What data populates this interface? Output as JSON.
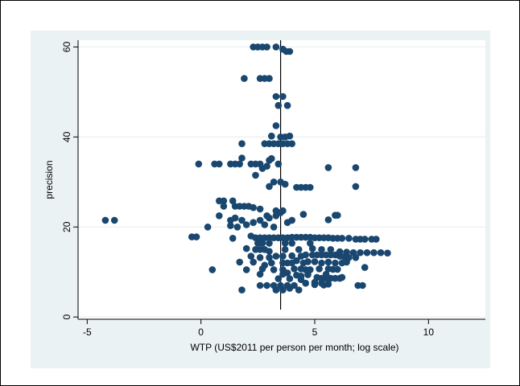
{
  "colors": {
    "frame_bg": "#ffffff",
    "region_bg": "#eaf2f3",
    "plot_bg": "#ffffff",
    "gridline": "#eaf2f3",
    "marker": "#1a476f",
    "axis": "#000000"
  },
  "chart_data": {
    "type": "scatter",
    "title": "",
    "xlabel": "WTP (US$2011 per person per month; log scale)",
    "ylabel": "precision",
    "xlim": [
      -5.4,
      12.5
    ],
    "ylim": [
      -0.5,
      61.5
    ],
    "xticks": [
      -5,
      0,
      5,
      10
    ],
    "yticks": [
      0,
      20,
      40,
      60
    ],
    "grid": "horizontal",
    "reference_line": {
      "x": 3.5
    },
    "series": [
      {
        "points": [
          [
            2.3,
            60
          ],
          [
            2.5,
            60
          ],
          [
            2.7,
            60
          ],
          [
            2.9,
            60
          ],
          [
            3.3,
            60
          ],
          [
            3.6,
            59.5
          ],
          [
            3.75,
            59
          ],
          [
            3.9,
            59
          ],
          [
            1.9,
            53
          ],
          [
            2.6,
            53
          ],
          [
            2.8,
            53
          ],
          [
            3.0,
            53
          ],
          [
            3.3,
            49
          ],
          [
            3.6,
            49
          ],
          [
            3.4,
            47
          ],
          [
            3.8,
            47
          ],
          [
            3.3,
            42.5
          ],
          [
            3.1,
            40.2
          ],
          [
            3.5,
            40
          ],
          [
            3.7,
            40
          ],
          [
            3.9,
            40.2
          ],
          [
            2.8,
            38.5
          ],
          [
            3.0,
            38.5
          ],
          [
            3.2,
            38.5
          ],
          [
            3.4,
            38.5
          ],
          [
            3.6,
            38.5
          ],
          [
            3.8,
            38.5
          ],
          [
            4.0,
            38.5
          ],
          [
            1.8,
            38.5
          ],
          [
            1.8,
            35.3
          ],
          [
            3.0,
            34.8
          ],
          [
            3.1,
            35.2
          ],
          [
            -0.1,
            34
          ],
          [
            0.6,
            34
          ],
          [
            0.8,
            34
          ],
          [
            1.3,
            34
          ],
          [
            1.5,
            34
          ],
          [
            1.7,
            34
          ],
          [
            2.2,
            34
          ],
          [
            2.4,
            34
          ],
          [
            2.6,
            34
          ],
          [
            2.9,
            33.5
          ],
          [
            2.7,
            33
          ],
          [
            3.4,
            34
          ],
          [
            5.6,
            33.2
          ],
          [
            6.8,
            33.2
          ],
          [
            2.4,
            31.5
          ],
          [
            3.2,
            30
          ],
          [
            3.5,
            30
          ],
          [
            3.0,
            29
          ],
          [
            3.7,
            29.5
          ],
          [
            4.2,
            28.8
          ],
          [
            4.4,
            28.8
          ],
          [
            4.6,
            28.8
          ],
          [
            4.8,
            28.8
          ],
          [
            6.8,
            29
          ],
          [
            0.8,
            25.8
          ],
          [
            1.0,
            25.8
          ],
          [
            1.4,
            25.8
          ],
          [
            1.5,
            24.6
          ],
          [
            1.0,
            24.6
          ],
          [
            1.7,
            24.6
          ],
          [
            1.9,
            24.6
          ],
          [
            2.1,
            24.6
          ],
          [
            2.3,
            24.3
          ],
          [
            2.6,
            24
          ],
          [
            3.3,
            23.6
          ],
          [
            3.5,
            23.2
          ],
          [
            3.6,
            23.6
          ],
          [
            3.3,
            22.5
          ],
          [
            2.9,
            22.5
          ],
          [
            3.0,
            22
          ],
          [
            1.5,
            22
          ],
          [
            0.8,
            22.5
          ],
          [
            1.3,
            21.5
          ],
          [
            1.8,
            21.5
          ],
          [
            2.0,
            20.5
          ],
          [
            2.3,
            21
          ],
          [
            1.6,
            20
          ],
          [
            1.3,
            20.3
          ],
          [
            0.3,
            20
          ],
          [
            2.6,
            21.5
          ],
          [
            2.8,
            20.5
          ],
          [
            3.2,
            20
          ],
          [
            3.8,
            21
          ],
          [
            4.0,
            21.5
          ],
          [
            4.5,
            22.8
          ],
          [
            5.6,
            21.6
          ],
          [
            5.9,
            22.6
          ],
          [
            6.0,
            22.6
          ],
          [
            -4.2,
            21.5
          ],
          [
            -3.8,
            21.5
          ],
          [
            -0.4,
            17.8
          ],
          [
            -0.2,
            17.8
          ],
          [
            1.4,
            17.5
          ],
          [
            2.2,
            18
          ],
          [
            2.4,
            17.6
          ],
          [
            2.6,
            17.6
          ],
          [
            2.8,
            17.6
          ],
          [
            3.0,
            17.6
          ],
          [
            3.2,
            17.6
          ],
          [
            3.4,
            17.6
          ],
          [
            3.6,
            17.6
          ],
          [
            3.8,
            17.6
          ],
          [
            4.0,
            17.7
          ],
          [
            4.2,
            17.7
          ],
          [
            4.4,
            17.7
          ],
          [
            4.6,
            17.7
          ],
          [
            4.8,
            17.7
          ],
          [
            5.0,
            17.6
          ],
          [
            5.2,
            17.6
          ],
          [
            5.4,
            17.6
          ],
          [
            5.6,
            17.6
          ],
          [
            5.8,
            17.5
          ],
          [
            6.0,
            17.5
          ],
          [
            6.2,
            17.5
          ],
          [
            6.5,
            17.5
          ],
          [
            6.8,
            17.3
          ],
          [
            7.0,
            17.3
          ],
          [
            7.2,
            17.3
          ],
          [
            7.5,
            17.3
          ],
          [
            7.7,
            17.3
          ],
          [
            2.5,
            16.4
          ],
          [
            2.7,
            16.4
          ],
          [
            3.0,
            16.4
          ],
          [
            3.7,
            16.4
          ],
          [
            4.0,
            16.4
          ],
          [
            4.8,
            16.4
          ],
          [
            2.0,
            15.2
          ],
          [
            2.4,
            15
          ],
          [
            2.6,
            15
          ],
          [
            2.8,
            15
          ],
          [
            3.0,
            14.6
          ],
          [
            3.7,
            15
          ],
          [
            4.3,
            15
          ],
          [
            4.9,
            15.2
          ],
          [
            5.3,
            15
          ],
          [
            5.7,
            15
          ],
          [
            6.1,
            14.5
          ],
          [
            6.4,
            14.4
          ],
          [
            6.7,
            14.3
          ],
          [
            7.0,
            14.3
          ],
          [
            7.3,
            14.3
          ],
          [
            7.6,
            14.3
          ],
          [
            7.9,
            14.3
          ],
          [
            8.2,
            14.2
          ],
          [
            2.2,
            13.5
          ],
          [
            2.6,
            13.2
          ],
          [
            3.0,
            13.2
          ],
          [
            3.3,
            13.5
          ],
          [
            3.6,
            13.5
          ],
          [
            4.0,
            13.6
          ],
          [
            4.4,
            13.5
          ],
          [
            4.6,
            13.8
          ],
          [
            4.9,
            13.8
          ],
          [
            5.1,
            13.8
          ],
          [
            5.3,
            13.8
          ],
          [
            5.5,
            13.8
          ],
          [
            5.7,
            13.8
          ],
          [
            5.9,
            13.8
          ],
          [
            6.1,
            13.5
          ],
          [
            6.3,
            13.4
          ],
          [
            6.5,
            13.2
          ],
          [
            6.8,
            13.2
          ],
          [
            1.7,
            12.2
          ],
          [
            2.3,
            12.2
          ],
          [
            2.8,
            11.5
          ],
          [
            3.1,
            12
          ],
          [
            3.6,
            12
          ],
          [
            3.8,
            12
          ],
          [
            4.0,
            12
          ],
          [
            4.2,
            12.5
          ],
          [
            4.5,
            12
          ],
          [
            4.7,
            12.3
          ],
          [
            5.0,
            12.3
          ],
          [
            5.3,
            12
          ],
          [
            5.6,
            12.2
          ],
          [
            5.9,
            12
          ],
          [
            6.2,
            12
          ],
          [
            6.4,
            12.2
          ],
          [
            7.2,
            11
          ],
          [
            0.5,
            10.5
          ],
          [
            2.0,
            10.5
          ],
          [
            2.7,
            10.7
          ],
          [
            3.2,
            10.5
          ],
          [
            3.6,
            10.5
          ],
          [
            3.8,
            9.8
          ],
          [
            4.1,
            10.7
          ],
          [
            4.4,
            10.7
          ],
          [
            4.6,
            10.5
          ],
          [
            4.8,
            10.5
          ],
          [
            5.2,
            10.7
          ],
          [
            5.6,
            10.7
          ],
          [
            5.8,
            10.6
          ],
          [
            6.0,
            10.6
          ],
          [
            2.6,
            9.5
          ],
          [
            3.6,
            9.5
          ],
          [
            4.2,
            9.3
          ],
          [
            4.4,
            9.1
          ],
          [
            4.7,
            9.4
          ],
          [
            5.5,
            9.5
          ],
          [
            3.4,
            8.5
          ],
          [
            3.9,
            8.5
          ],
          [
            4.4,
            8.3
          ],
          [
            5.1,
            8.8
          ],
          [
            5.3,
            8.6
          ],
          [
            5.5,
            8.6
          ],
          [
            5.7,
            8.6
          ],
          [
            5.9,
            8.6
          ],
          [
            6.1,
            8.6
          ],
          [
            6.2,
            8.8
          ],
          [
            5.0,
            7.7
          ],
          [
            5.3,
            7.5
          ],
          [
            5.6,
            7.3
          ],
          [
            2.6,
            7
          ],
          [
            2.9,
            7
          ],
          [
            3.2,
            7
          ],
          [
            3.5,
            7
          ],
          [
            3.8,
            7
          ],
          [
            4.1,
            7
          ],
          [
            4.6,
            7.5
          ],
          [
            5.0,
            7.2
          ],
          [
            5.4,
            7.1
          ],
          [
            6.9,
            7
          ],
          [
            7.1,
            7
          ],
          [
            1.8,
            6
          ],
          [
            3.3,
            6
          ],
          [
            3.6,
            6
          ],
          [
            3.9,
            6.4
          ],
          [
            4.3,
            6
          ]
        ]
      }
    ]
  }
}
